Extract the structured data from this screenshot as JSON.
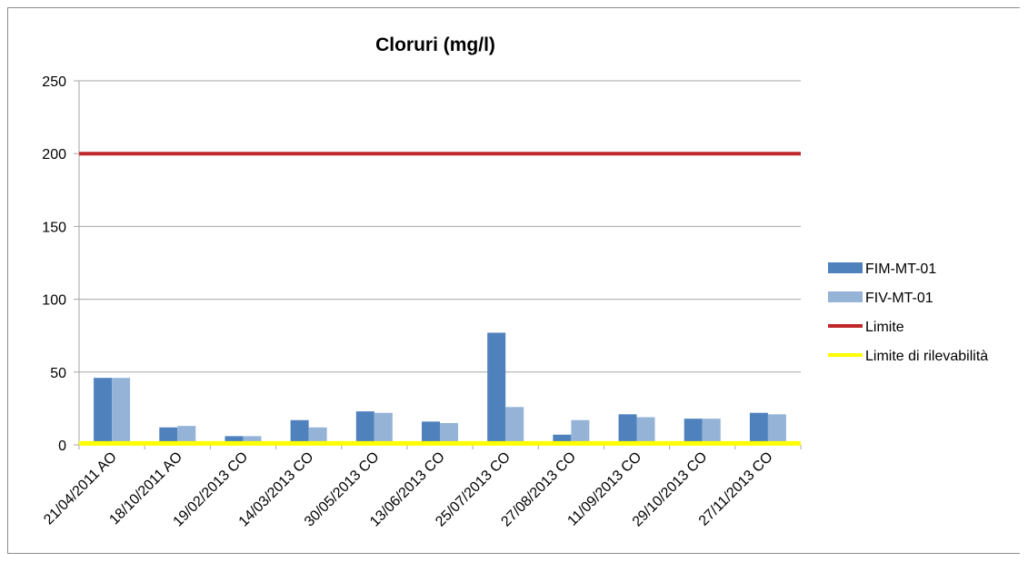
{
  "chart_data": {
    "type": "bar",
    "title": "Cloruri (mg/l)",
    "xlabel": "",
    "ylabel": "",
    "ylim": [
      0,
      250
    ],
    "yticks": [
      0,
      50,
      100,
      150,
      200,
      250
    ],
    "grid": true,
    "legend_position": "right",
    "categories": [
      "21/04/2011 AO",
      "18/10/2011 AO",
      "19/02/2013 CO",
      "14/03/2013 CO",
      "30/05/2013 CO",
      "13/06/2013 CO",
      "25/07/2013 CO",
      "27/08/2013 CO",
      "11/09/2013 CO",
      "29/10/2013 CO",
      "27/11/2013 CO"
    ],
    "series": [
      {
        "name": "FIM-MT-01",
        "color": "#4f81bd",
        "values": [
          46,
          12,
          6,
          17,
          23,
          16,
          77,
          7,
          21,
          18,
          22
        ]
      },
      {
        "name": "FIV-MT-01",
        "color": "#95b3d7",
        "values": [
          46,
          13,
          6,
          12,
          22,
          15,
          26,
          17,
          19,
          18,
          21
        ]
      }
    ],
    "reference_lines": [
      {
        "name": "Limite",
        "value": 200,
        "color": "#c0262a"
      },
      {
        "name": "Limite di rilevabilità",
        "value": 1,
        "color": "#ffff00"
      }
    ]
  }
}
